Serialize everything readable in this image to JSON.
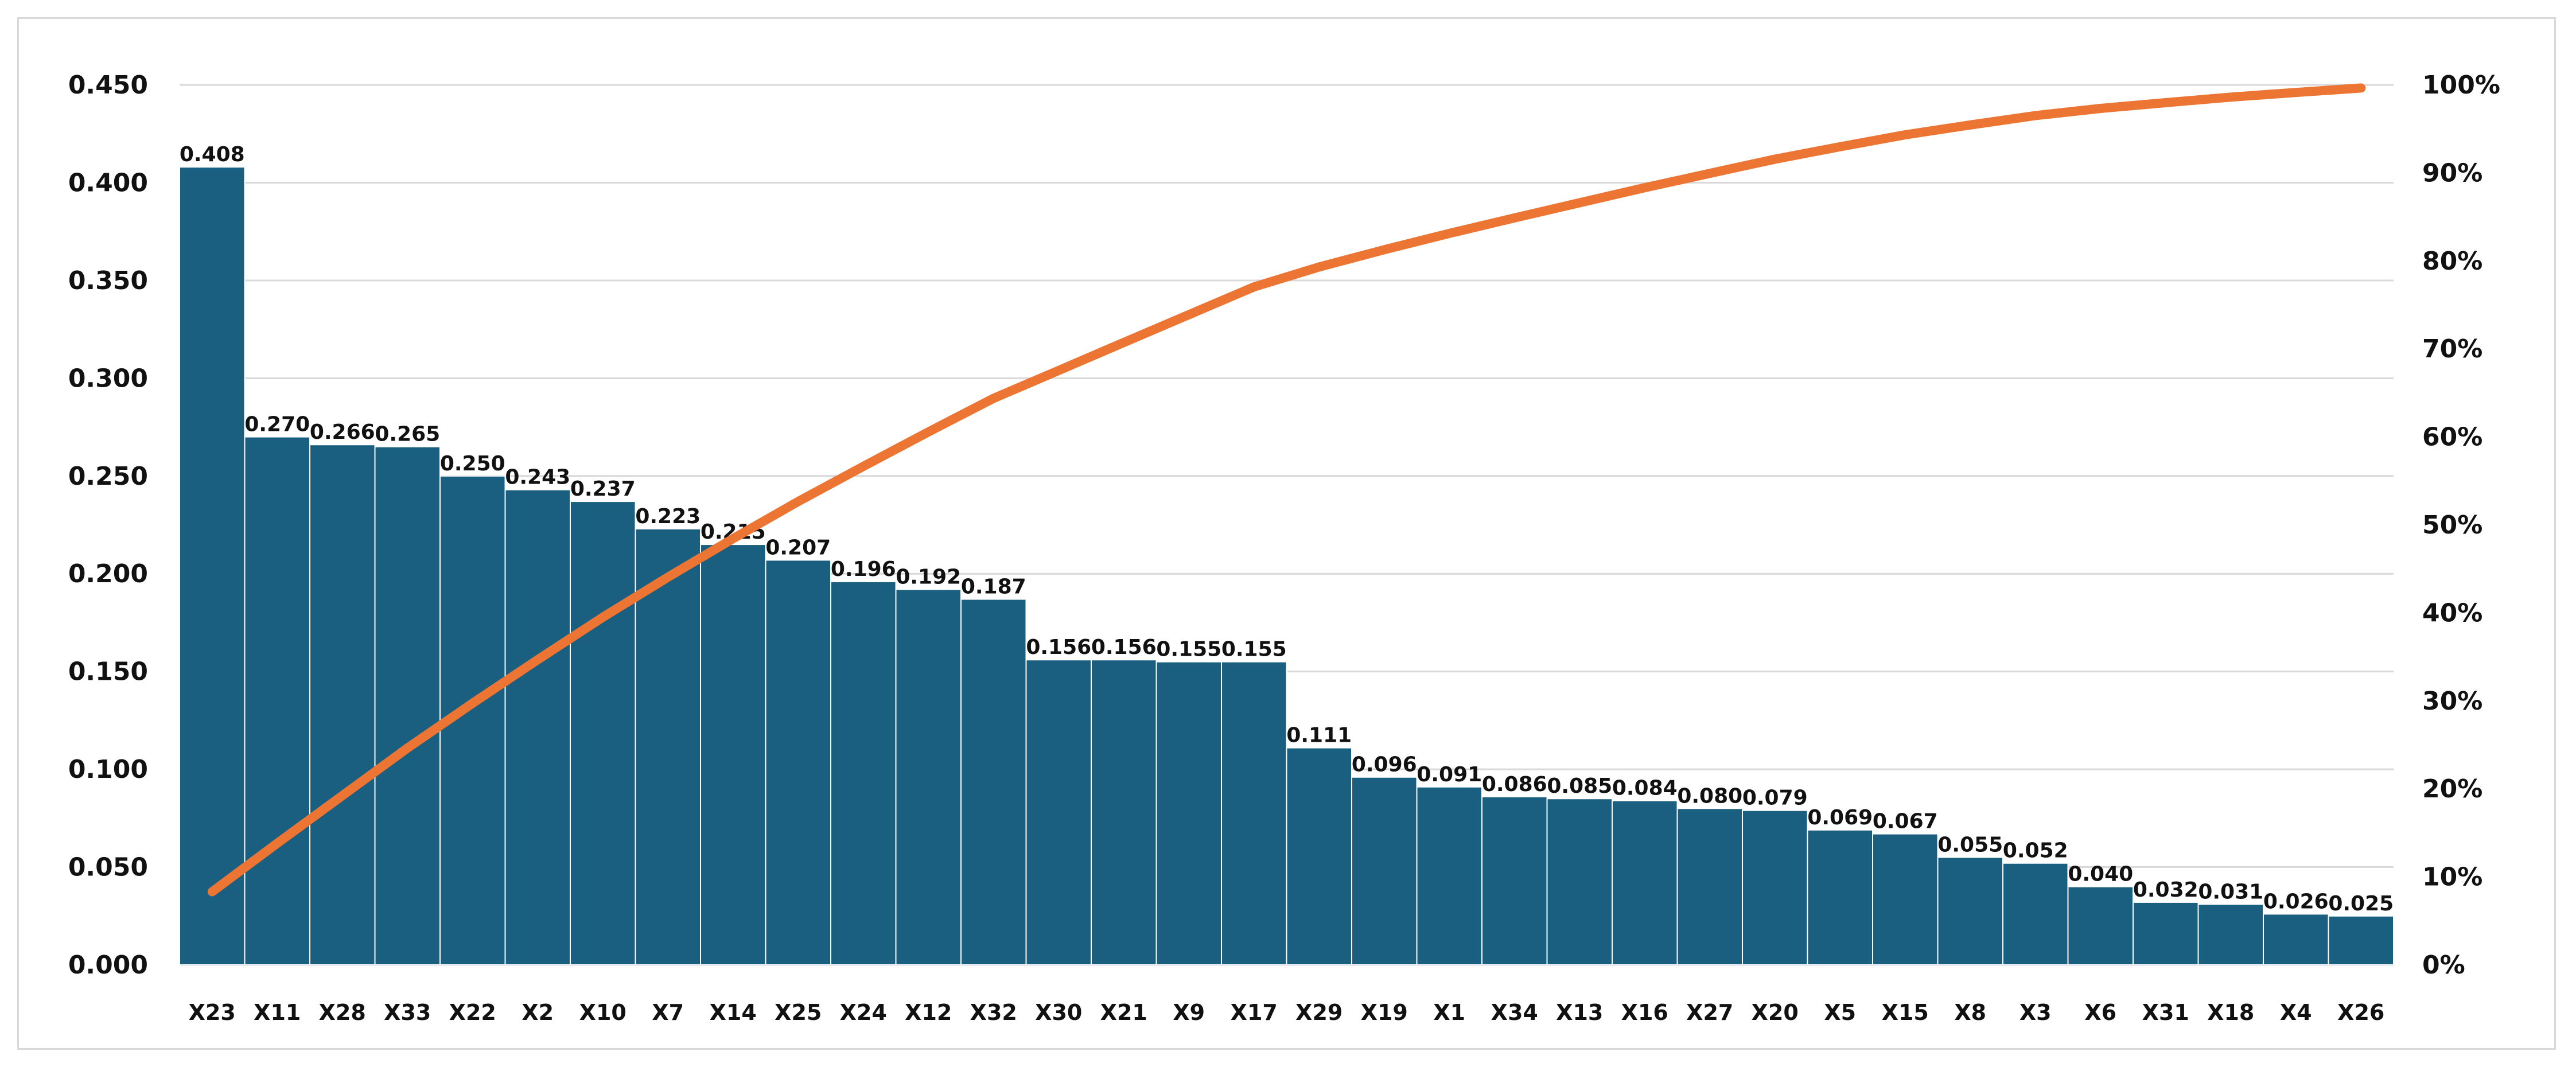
{
  "chart_data": {
    "type": "bar",
    "categories": [
      "X23",
      "X11",
      "X28",
      "X33",
      "X22",
      "X2",
      "X10",
      "X7",
      "X14",
      "X25",
      "X24",
      "X12",
      "X32",
      "X30",
      "X21",
      "X9",
      "X17",
      "X29",
      "X19",
      "X1",
      "X34",
      "X13",
      "X16",
      "X27",
      "X20",
      "X5",
      "X15",
      "X8",
      "X3",
      "X6",
      "X31",
      "X18",
      "X4",
      "X26"
    ],
    "data_labels": [
      "0.408",
      "0.270",
      "0.266",
      "0.265",
      "0.250",
      "0.243",
      "0.237",
      "0.223",
      "0.215",
      "0.207",
      "0.196",
      "0.192",
      "0.187",
      "0.156",
      "0.156",
      "0.155",
      "0.155",
      "0.111",
      "0.096",
      "0.091",
      "0.086",
      "0.085",
      "0.084",
      "0.080",
      "0.079",
      "0.069",
      "0.067",
      "0.055",
      "0.052",
      "0.040",
      "0.032",
      "0.031",
      "0.026",
      "0.025"
    ],
    "series": [
      {
        "type": "bar",
        "axis": "left",
        "color": "#1a5f80",
        "values": [
          0.408,
          0.27,
          0.266,
          0.265,
          0.25,
          0.243,
          0.237,
          0.223,
          0.215,
          0.207,
          0.196,
          0.192,
          0.187,
          0.156,
          0.156,
          0.155,
          0.155,
          0.111,
          0.096,
          0.091,
          0.086,
          0.085,
          0.084,
          0.08,
          0.079,
          0.069,
          0.067,
          0.055,
          0.052,
          0.04,
          0.032,
          0.031,
          0.026,
          0.025
        ]
      },
      {
        "type": "line",
        "axis": "right",
        "color": "#ed7534",
        "values": [
          0.0831,
          0.1382,
          0.1924,
          0.2464,
          0.2973,
          0.3468,
          0.3951,
          0.4406,
          0.4844,
          0.5266,
          0.5665,
          0.6057,
          0.6438,
          0.6755,
          0.7073,
          0.7389,
          0.7705,
          0.7931,
          0.8127,
          0.8312,
          0.8488,
          0.8661,
          0.8832,
          0.8995,
          0.9156,
          0.9297,
          0.9433,
          0.9545,
          0.9651,
          0.9733,
          0.9798,
          0.9861,
          0.9914,
          0.9965
        ]
      }
    ],
    "y_left": {
      "ylim": [
        0,
        0.45
      ],
      "ticks": [
        "0.000",
        "0.050",
        "0.100",
        "0.150",
        "0.200",
        "0.250",
        "0.300",
        "0.350",
        "0.400",
        "0.450"
      ]
    },
    "y_right": {
      "ylim": [
        0,
        1
      ],
      "ticks": [
        "0%",
        "10%",
        "20%",
        "30%",
        "40%",
        "50%",
        "60%",
        "70%",
        "80%",
        "90%",
        "100%"
      ]
    },
    "grid": true,
    "title": "",
    "xlabel": "",
    "ylabel": ""
  }
}
